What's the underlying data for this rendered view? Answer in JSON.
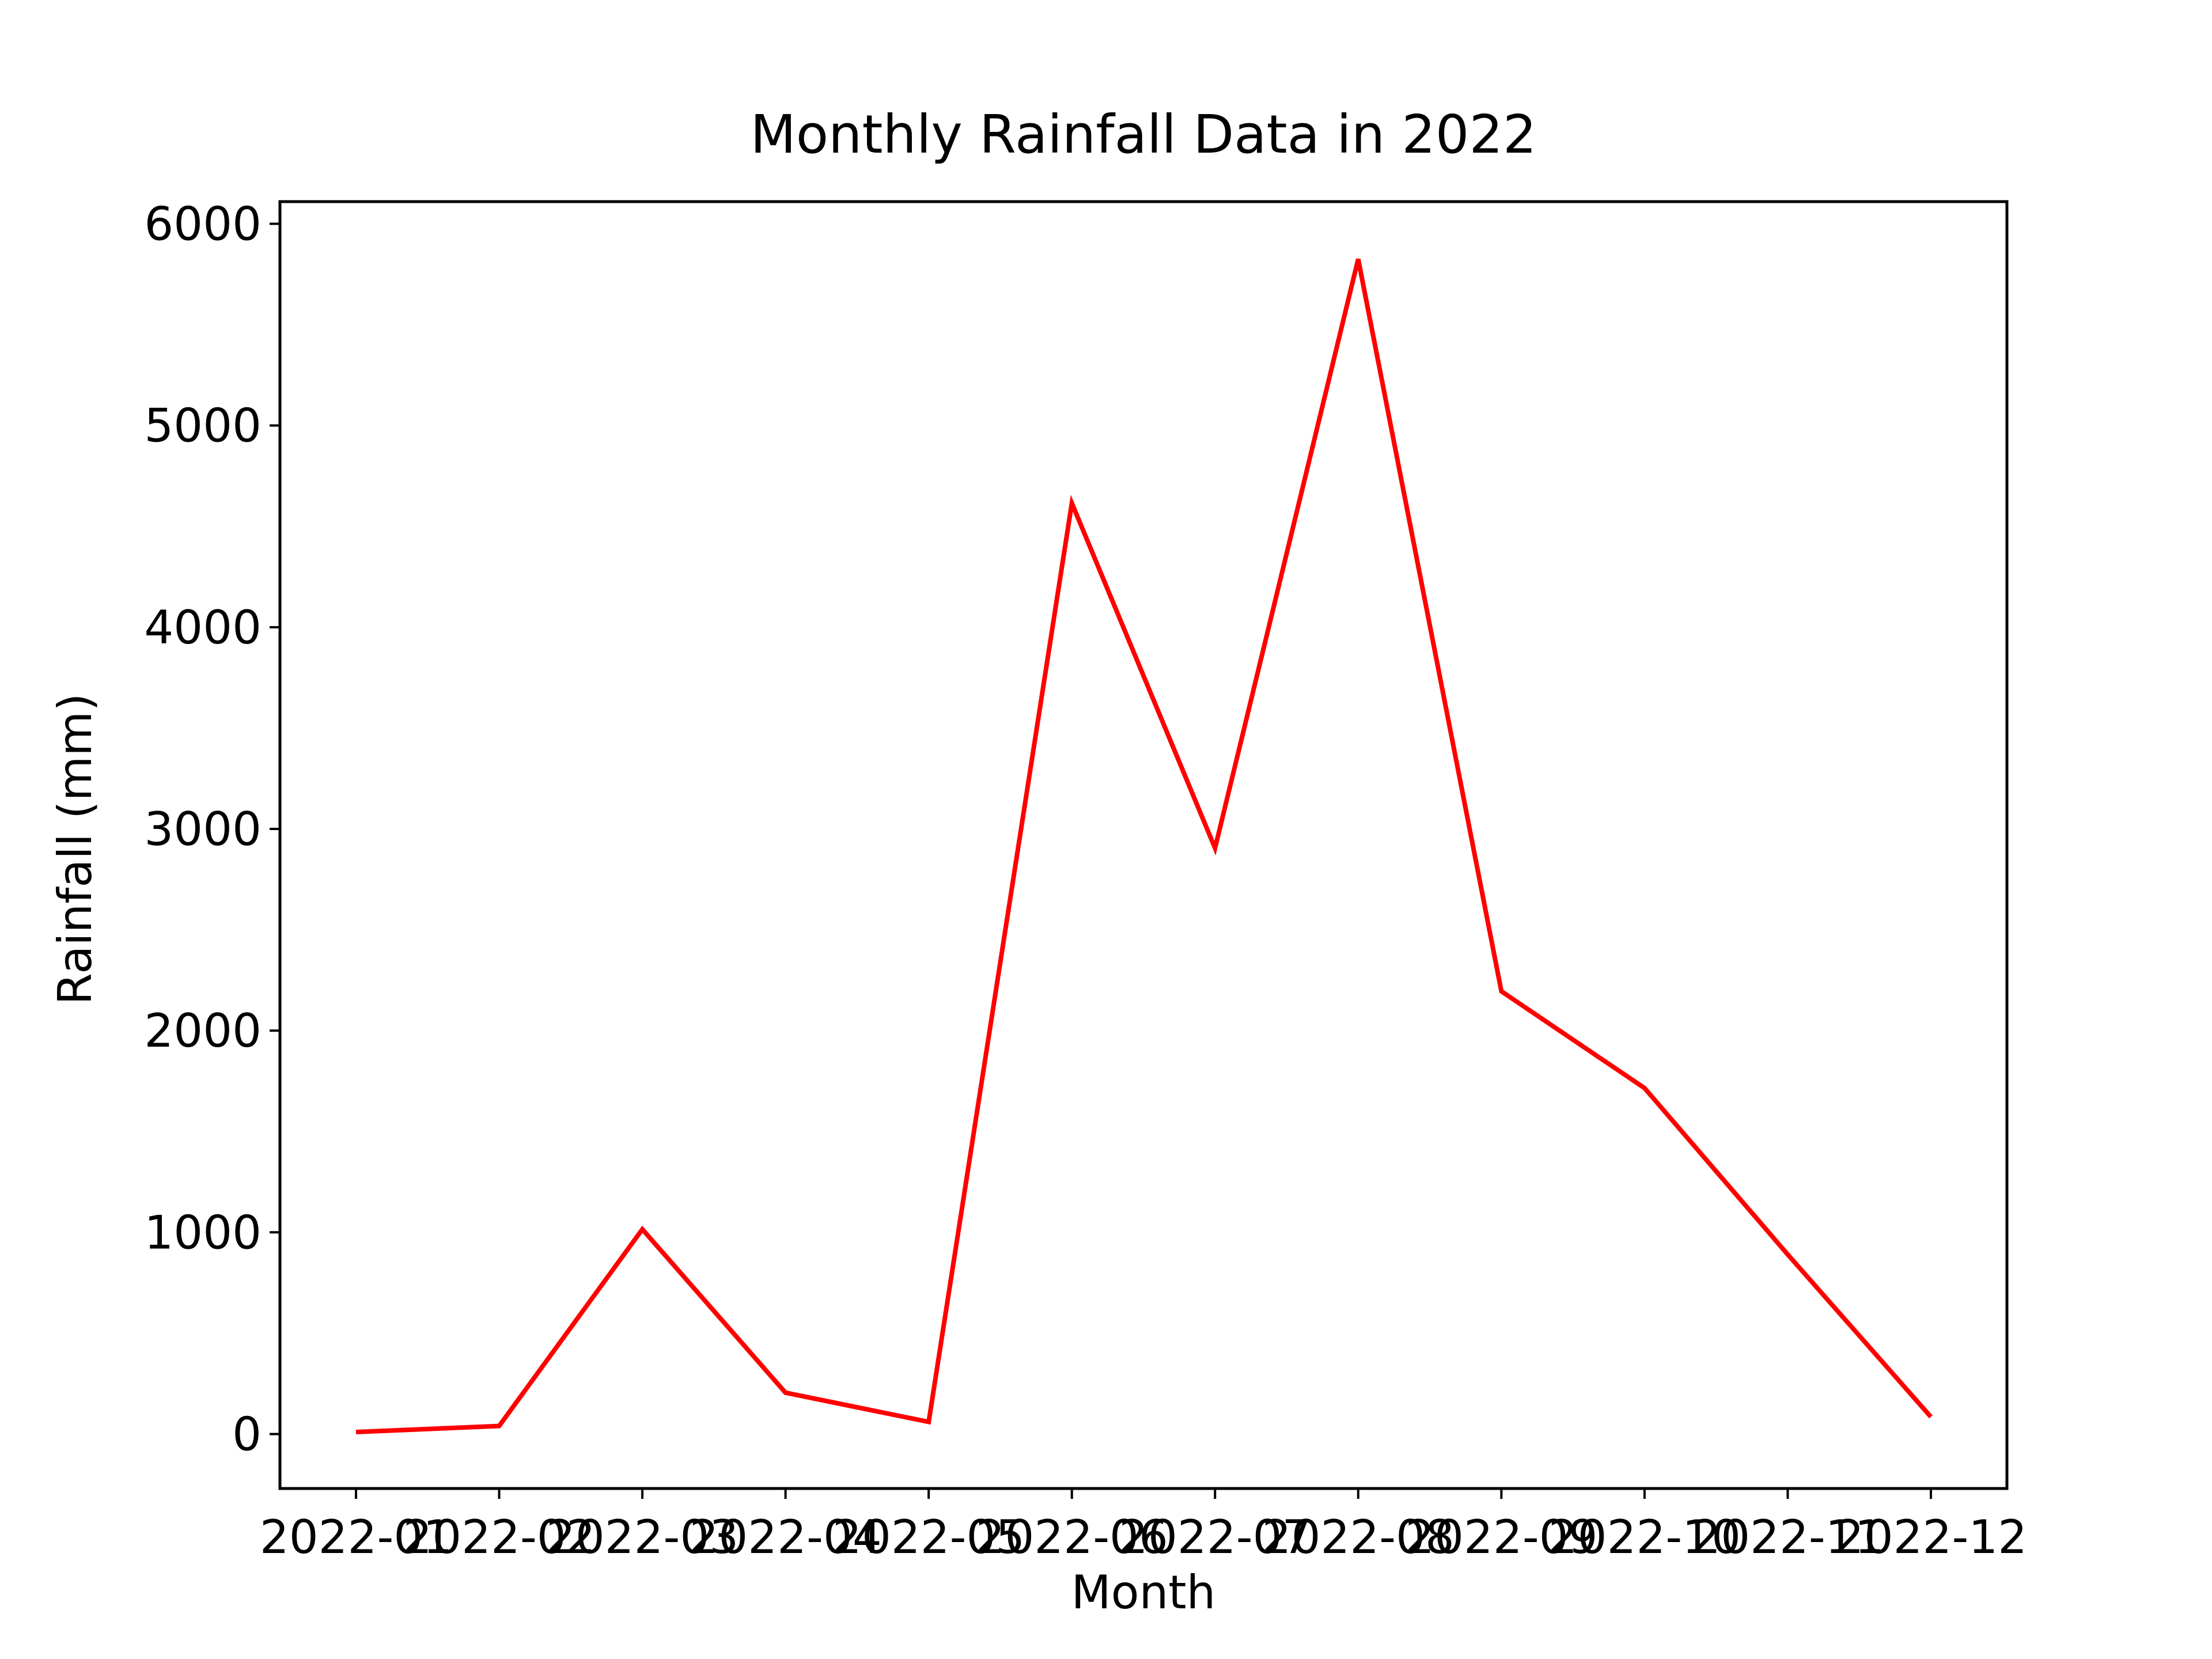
{
  "chart_data": {
    "type": "line",
    "title": "Monthly Rainfall Data in 2022",
    "xlabel": "Month",
    "ylabel": "Rainfall (mm)",
    "categories": [
      "2022-01",
      "2022-02",
      "2022-03",
      "2022-04",
      "2022-05",
      "2022-06",
      "2022-07",
      "2022-08",
      "2022-09",
      "2022-10",
      "2022-11",
      "2022-12"
    ],
    "series": [
      {
        "values": [
          10,
          40,
          1015,
          205,
          60,
          4615,
          2905,
          5825,
          2195,
          1715,
          890,
          85
        ],
        "color": "#ff0000"
      }
    ],
    "ylim": [
      -270,
      6110
    ],
    "yticks": [
      0,
      1000,
      2000,
      3000,
      4000,
      5000,
      6000
    ],
    "ytick_labels": [
      "0",
      "1000",
      "2000",
      "3000",
      "4000",
      "5000",
      "6000"
    ],
    "grid": false,
    "legend": "none"
  }
}
